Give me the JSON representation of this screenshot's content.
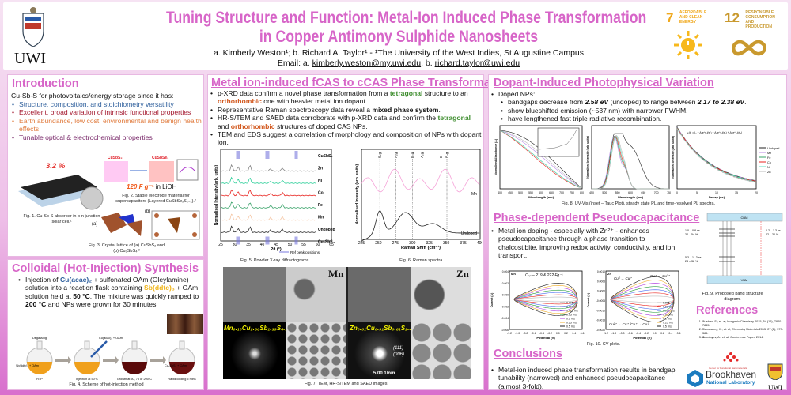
{
  "header": {
    "title_line1": "Tuning Structure and Function: Metal-Ion Induced Phase Transformation",
    "title_line2": "in Copper Antimony Sulphide Nanosheets",
    "authors": "a. Kimberly Weston¹; b. Richard A. Taylor¹ - ¹The University of the West Indies, St Augustine Campus",
    "email_prefix": "Email: a. ",
    "email_a": "kimberly.weston@my.uwi.edu",
    "email_sep": ", b. ",
    "email_b": "richard.taylor@uwi.edu",
    "logo_text": "UWI",
    "sdg7_num": "7",
    "sdg7_text": "AFFORDABLE AND CLEAN ENERGY",
    "sdg12_num": "12",
    "sdg12_text": "RESPONSIBLE CONSUMPTION AND PRODUCTION"
  },
  "intro": {
    "heading": "Introduction",
    "lead": "Cu-Sb-S for photovoltaics/energy storage since it has:",
    "bullets": [
      "Structure, composition, and stoichiometry versatility",
      "Excellent, broad variation of intrinsic functional properties",
      "Earth abundance, low cost, environmental and benign health effects",
      "Tunable optical & electrochemical properties"
    ],
    "efficiency": "3.2 %",
    "capacitance": "120 F g⁻¹",
    "capacitance_suffix": " in LiOH",
    "fig1": "Fig. 1. Cu-Sb-S absorber in p-n junction solar cell.¹",
    "fig2": "Fig. 2. Stable electrode material for supercapacitors (Layered CuSbSeₓS₂₋ₓ).²",
    "fig3": "Fig. 3. Crystal lattice of (a) CuSbS₂ and (b) Cu₃SbS₄.³",
    "label_a": "(a)",
    "label_b": "(b)",
    "label_cusbs2": "CuSbS₂",
    "label_cusbse2": "CuSbSe₂"
  },
  "synthesis": {
    "heading": "Colloidal (Hot-Injection) Synthesis",
    "t1": "Injection of ",
    "cu": "Cu(acac)₂",
    "t2": " + sulfonated OAm (Oleylamine) solution into a reaction flask containing ",
    "sb": "Sb(ddtc)₃",
    "t3": " + OAm solution held at ",
    "temp1": "50 °C",
    "t4": ". The mixture was quickly ramped to ",
    "temp2": "200 °C",
    "t5": " and  NPs were grown for 30 minutes.",
    "steps": [
      "RTP",
      "Injection at 50°C",
      "Growth at 50, 75 or 200°C",
      "Rapid cooling 5 mins"
    ],
    "labels": [
      "Degassing",
      "Cu(acac)₂ + OAm",
      "Sb(ddtc)₃ + OAm",
      "Cu₃SbS₄ + OAm"
    ],
    "fig4": "Fig. 4. Scheme of hot-injection method"
  },
  "phase": {
    "heading": "Metal ion-induced fCAS to cCAS Phase Transformation",
    "b1a": "p-XRD data confirm a novel phase transformation from a ",
    "tetragonal": "tetragonal",
    "b1b": " structure to an ",
    "orthorhombic": "orthorhombic",
    "b1c": " one with heavier metal ion dopant.",
    "b2a": "Representative Raman spectroscopy data reveal a ",
    "mixed": "mixed phase system",
    "b2b": ".",
    "b3a": "HR-S/TEM and SAED data corroborate with p-XRD data and confirm the ",
    "b3b": " and ",
    "b3c": " structures of doped CAS NPs.",
    "b4": "TEM and EDS suggest a correlation of morphology and composition of NPs with dopant ion.",
    "xrd": {
      "ylabel": "Normalised Intensity (arb. units)",
      "xlabel": "2θ (°)",
      "legend": "Ref peak positions",
      "ticks": [
        "25",
        "30",
        "35",
        "40",
        "45",
        "50",
        "55",
        "60",
        "65"
      ],
      "series": [
        "CuSbS₂",
        "Zn",
        "Ni",
        "Co",
        "Fe",
        "Mn",
        "Undoped",
        "Cu₃SbS₄"
      ],
      "colors": [
        "#7777dd",
        "#888888",
        "#2ecf9a",
        "#e8231f",
        "#3aa36a",
        "#f5c7a6",
        "#333333",
        "#7777dd"
      ]
    },
    "fig5": "Fig. 5. Powder X-ray diffractograms.",
    "raman": {
      "ylabel": "Normalised Intensity (arb. units)",
      "xlabel": "Raman Shift (cm⁻¹)",
      "ticks": [
        "225",
        "250",
        "275",
        "300",
        "325",
        "350",
        "375",
        "400"
      ],
      "modes": [
        "B₁g",
        "A₁g",
        "B₂g",
        "A₁g",
        "E",
        "B₂g"
      ],
      "series": [
        "Mn",
        "Undoped"
      ]
    },
    "fig6": "Fig. 6. Raman spectra.",
    "tem_mn": "Mn",
    "tem_zn": "Zn",
    "formula_mn": "Mn₀.₁₀Cu₂.₆₆Sb₁.₃₉S₄.₂₀",
    "formula_zn": "Zn₀.₀₁Cu₀.₉₁Sb₀.₆₁S₂.₄₈",
    "saed_111": "(111)",
    "saed_006": "(006)",
    "scale_saed": "5.00 1/nm",
    "fig7": "Fig. 7. TEM, HR-S/TEM and SAED images."
  },
  "photo": {
    "heading": "Dopant-Induced Photophysical Variation",
    "lead": "Doped NPs:",
    "s1a": "bandgaps decrease from ",
    "s1b": "2.58 eV",
    "s1c": " (undoped) to range between ",
    "s1d": "2.17 to 2.38 eV",
    "s1e": ".",
    "s2": "show blueshifted emission (~537 nm) with narrower FWHM.",
    "s3": "have lengthened fast triple radiative recombination.",
    "uv": {
      "ylabel": "Normalised Absorbance (A)",
      "xlabel": "Wavelength (nm)",
      "ticks": [
        "400",
        "450",
        "500",
        "550",
        "600",
        "650",
        "700",
        "750",
        "800"
      ]
    },
    "pl": {
      "ylabel": "Normalised Intensity (arb. units)",
      "xlabel": "Wavelength (nm)",
      "ticks": [
        "450",
        "500",
        "550",
        "600",
        "650",
        "700",
        "750"
      ]
    },
    "trpl": {
      "ylabel": "Normalised Intensity (arb. units)",
      "xlabel": "Decay (ns)",
      "ticks": [
        "0",
        "5",
        "10",
        "15",
        "20"
      ],
      "equation": "Iₚₗ(t) = I₀ + A₁e^(-t/τ₁) + A₂e^(-t/τ₂) + A₃e^(-t/τ₃)",
      "legend": [
        "Undoped",
        "Mn",
        "Fe",
        "Co",
        "Ni",
        "Zn"
      ]
    },
    "colors": {
      "Undoped": "#222222",
      "Mn": "#b98ae6",
      "Fe": "#3aa36a",
      "Co": "#e8231f",
      "Ni": "#5fe0c0",
      "Zn": "#bbbbbb"
    },
    "fig8": "Fig. 8. UV-Vis (inset – Tauc Plot), steady state PL and time-resolved PL spectra."
  },
  "pseudo": {
    "heading": "Phase-dependent Pseudocapacitance",
    "b1": "Metal ion doping - especially with Zn²⁺ - enhances pseudocapacitance through a phase transition to chalcostibite, improving redox activity, conductivity, and ion transport.",
    "cv_mn": {
      "label": "Mn",
      "csp": "Cₛₚ – 219 & 222 Fg⁻¹",
      "xlabel": "Potential (V)",
      "ylabel": "Current (A)",
      "xticks": [
        "-1.2",
        "-1.0",
        "-0.8",
        "-0.6",
        "-0.4",
        "-0.2",
        "0.0",
        "0.2",
        "0.4",
        "0.6"
      ],
      "yticks": [
        "0.004",
        "0.002",
        "0.000",
        "-0.002",
        "-0.004",
        "-0.006"
      ]
    },
    "cv_zn": {
      "label": "Zn",
      "ann1": "Cu⁰ → Cu⁺",
      "ann2": "Cu⁺ → Cu²⁺",
      "ann3": "Cu²⁺ → Cu⁺ /Cu⁺ → Cu⁰",
      "xlabel": "Potential (V)",
      "ylabel": "Current (A)",
      "yticks": [
        "0.0010",
        "0.0005",
        "0.0000",
        "-0.0005",
        "-0.0010",
        "-0.0015",
        "-0.0020"
      ]
    },
    "scan_rates": [
      "0.005 V/s",
      "0.01 V/s",
      "0.025 V/s",
      "0.05 V/s",
      "0.1 V/s",
      "0.25 V/s",
      "0.5 V/s"
    ],
    "scan_colors": [
      "#bbbbbb",
      "#e8231f",
      "#4b6cf0",
      "#2ea043",
      "#b040e0",
      "#f0b030",
      "#222222"
    ],
    "fig10": "Fig. 10. CV plots."
  },
  "band": {
    "cbm": "CBM",
    "vbm": "VBM",
    "l1": "1.0 – 0.8 ns",
    "l1b": "32 – 54 %",
    "l2": "0.2 – 1.3 ns",
    "l2b": "22 – 30 %",
    "l3": "5.3 – 11.3 ns",
    "l3b": "24 – 38 %",
    "fig9": "Fig. 9. Proposed band structure diagram."
  },
  "refs": {
    "heading": "References",
    "items": [
      "Suehiro, S.; et. al; Inorganic Chemistry 2015, 54 (16), 7840-7845.",
      "Ramasamy, K.; et. al; Chemistry Materials 2015, 27 (1), 379-386.",
      "Zakutayev, A.; et. al; Conference Paper, 2014."
    ]
  },
  "conclusions": {
    "heading": "Conclusions",
    "b1": "Metal-ion induced phase transformation results in bandgap tunability (narrowed) and enhanced pseudocapacitance (almost 3-fold)."
  },
  "logos": {
    "brookhaven": "Brookhaven",
    "brookhaven_sub": "National Laboratory",
    "uwi": "UWI",
    "cfn": "Center for Functional Nanomaterials"
  }
}
